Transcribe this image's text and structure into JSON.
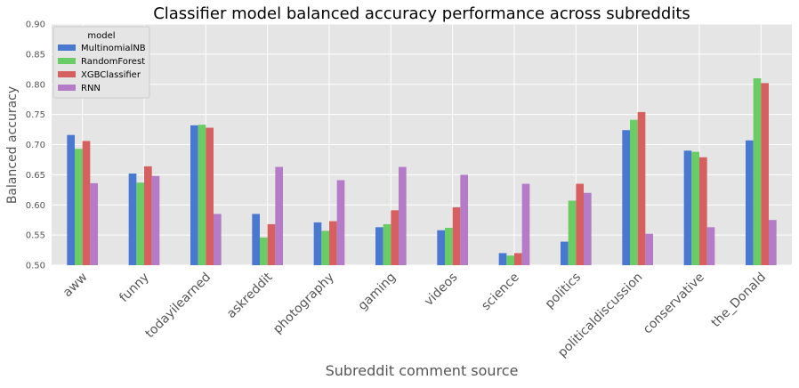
{
  "chart_data": {
    "type": "bar",
    "title": "Classifier model balanced accuracy performance across subreddits",
    "xlabel": "Subreddit comment source",
    "ylabel": "Balanced accuracy",
    "ylim": [
      0.5,
      0.9
    ],
    "yticks": [
      "0.50",
      "0.55",
      "0.60",
      "0.65",
      "0.70",
      "0.75",
      "0.80",
      "0.85",
      "0.90"
    ],
    "grid": true,
    "legend_title": "model",
    "legend_position": "top-left",
    "categories": [
      "aww",
      "funny",
      "todayilearned",
      "askreddit",
      "photography",
      "gaming",
      "videos",
      "science",
      "politics",
      "politicaldiscussion",
      "conservative",
      "the_Donald"
    ],
    "series": [
      {
        "name": "MultinomialNB",
        "color": "#4878cf",
        "values": [
          0.716,
          0.652,
          0.732,
          0.585,
          0.571,
          0.563,
          0.558,
          0.52,
          0.539,
          0.724,
          0.69,
          0.707
        ]
      },
      {
        "name": "RandomForest",
        "color": "#6acc65",
        "values": [
          0.693,
          0.637,
          0.733,
          0.546,
          0.557,
          0.568,
          0.562,
          0.516,
          0.607,
          0.741,
          0.688,
          0.81
        ]
      },
      {
        "name": "XGBClassifier",
        "color": "#d65f5f",
        "values": [
          0.706,
          0.664,
          0.728,
          0.568,
          0.573,
          0.591,
          0.596,
          0.52,
          0.635,
          0.754,
          0.679,
          0.802
        ]
      },
      {
        "name": "RNN",
        "color": "#b47cc7",
        "values": [
          0.636,
          0.648,
          0.585,
          0.663,
          0.641,
          0.663,
          0.65,
          0.635,
          0.62,
          0.552,
          0.563,
          0.575
        ]
      }
    ]
  }
}
